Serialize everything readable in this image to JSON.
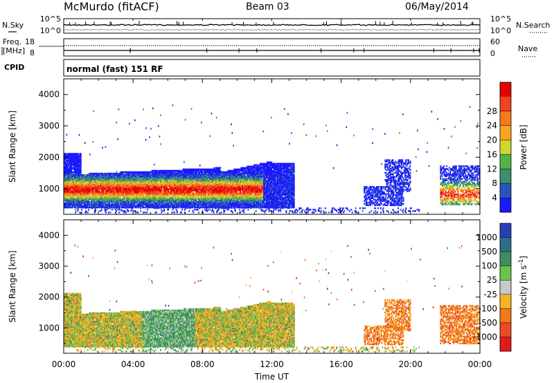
{
  "header": {
    "station": "McMurdo (fitACF)",
    "beam": "Beam 03",
    "date": "06/May/2014"
  },
  "chart_data": [
    {
      "type": "line",
      "panel": "noise",
      "left_label": "N.Sky",
      "right_label": "N.Search",
      "left_ticks": [
        "10^5",
        "10^0"
      ],
      "right_ticks": [
        "10^5",
        "10^0"
      ]
    },
    {
      "type": "line",
      "panel": "frequency",
      "left_label_1": "Freq.",
      "left_label_2": "[MHz]",
      "right_label": "Nave",
      "left_ticks": [
        "18",
        "8"
      ],
      "right_ticks": [
        "60",
        "0"
      ]
    },
    {
      "type": "table",
      "panel": "cpid",
      "label": "CPID",
      "text": "normal (fast) 151 RF"
    },
    {
      "type": "heatmap",
      "panel": "power",
      "ylabel": "Slant Range [km]",
      "yticks": [
        "1000",
        "2000",
        "3000",
        "4000"
      ],
      "ylim": [
        180,
        4500
      ],
      "xlim": [
        0,
        24
      ],
      "colorbar_label": "Power [dB]",
      "colorbar_ticks": [
        "4",
        "8",
        "12",
        "16",
        "20",
        "24",
        "28"
      ],
      "colors": [
        "#1a1aff",
        "#2a55b8",
        "#3d8f6e",
        "#55b046",
        "#cfd630",
        "#f6a61b",
        "#f47a20",
        "#ee4420",
        "#e60000"
      ]
    },
    {
      "type": "heatmap",
      "panel": "velocity",
      "ylabel": "Slant Range [km]",
      "yticks": [
        "1000",
        "2000",
        "3000",
        "4000"
      ],
      "ylim": [
        180,
        4500
      ],
      "xlim": [
        0,
        24
      ],
      "xlabel": "Time UT",
      "xticks": [
        "00:00",
        "04:00",
        "08:00",
        "12:00",
        "16:00",
        "20:00",
        "00:00"
      ],
      "colorbar_label": "Velocity [m s",
      "colorbar_label_sup": "-1",
      "colorbar_label_end": "]",
      "colorbar_ticks": [
        "1000",
        "500",
        "100",
        "25",
        "-25",
        "-100",
        "-500",
        "-1000"
      ],
      "colors": [
        "#2a3fb5",
        "#2f6e86",
        "#3c9060",
        "#6bc34b",
        "#c8c8c8",
        "#f9b225",
        "#f07a1a",
        "#e94c20",
        "#e31a1a"
      ]
    }
  ]
}
